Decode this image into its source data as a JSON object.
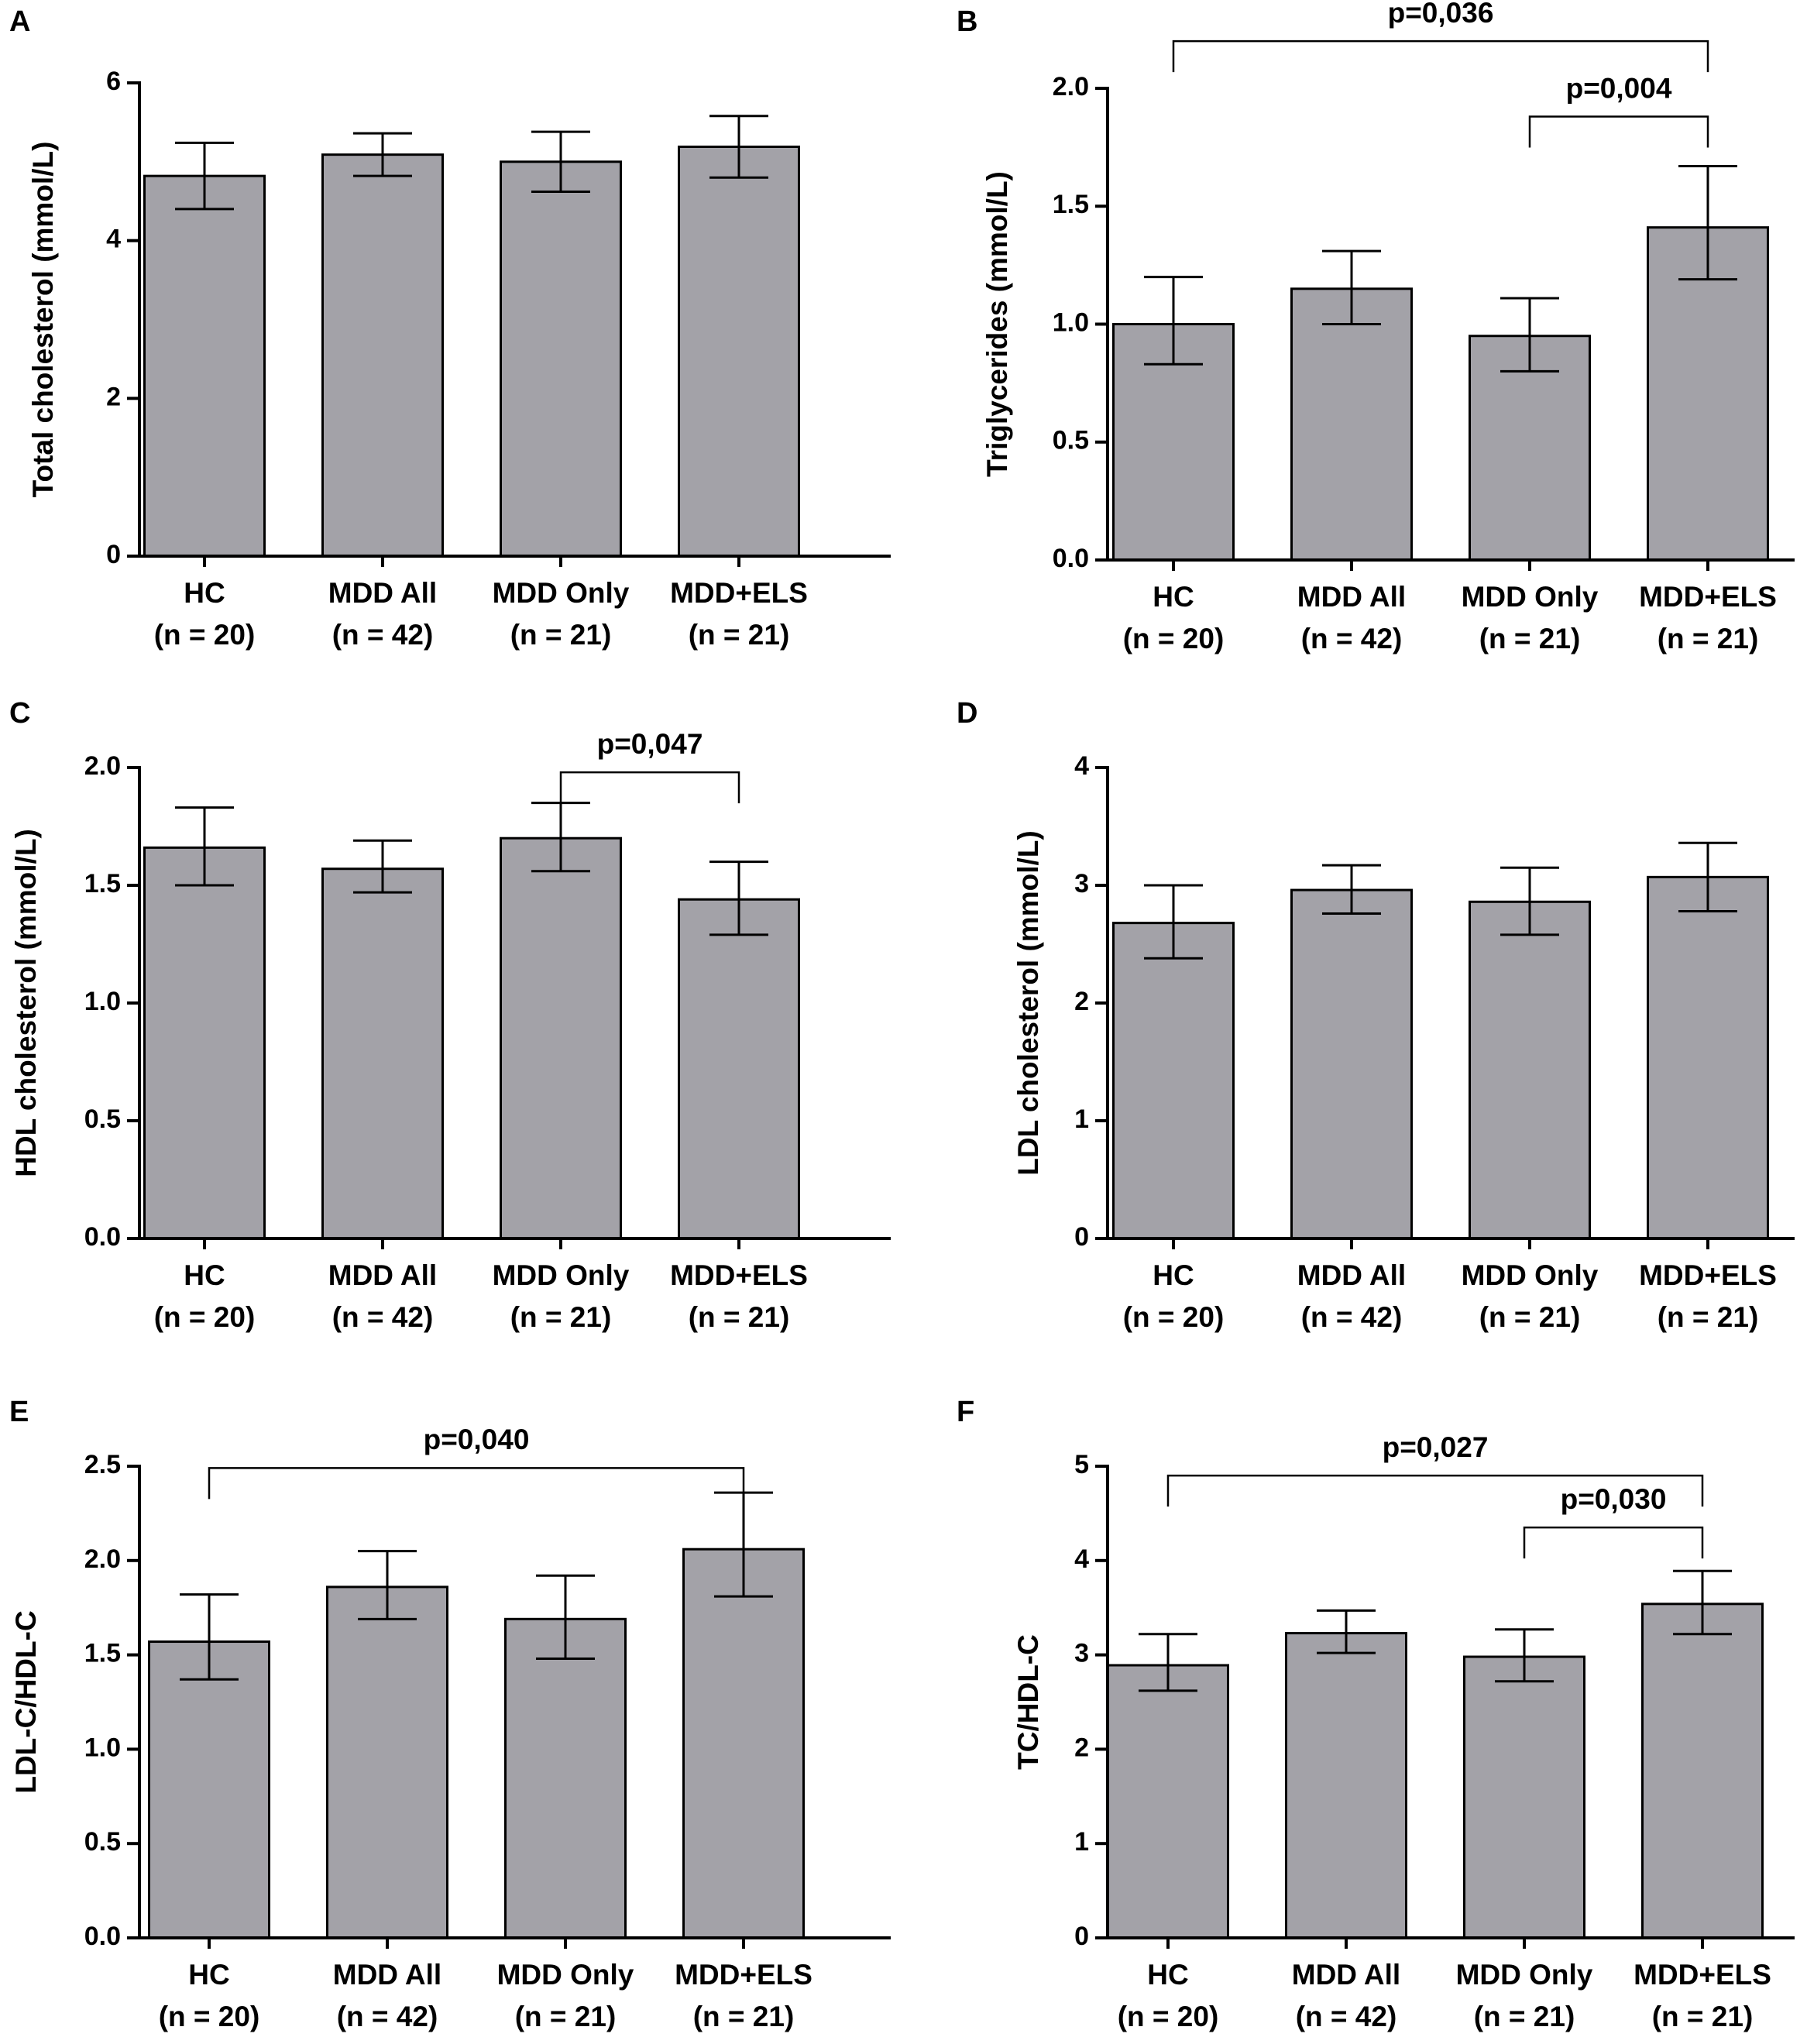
{
  "colors": {
    "bar": "#a3a2a8",
    "axis": "#000000",
    "background": "#ffffff"
  },
  "chart_data": [
    {
      "panel": "A",
      "type": "bar",
      "ylabel": "Total cholesterol (mmol/L)",
      "categories": [
        "HC",
        "MDD All",
        "MDD Only",
        "MDD+ELS"
      ],
      "n_labels": [
        "(n = 20)",
        "(n = 42)",
        "(n = 21)",
        "(n = 21)"
      ],
      "values": [
        4.82,
        5.09,
        5.0,
        5.19
      ],
      "err_low": [
        4.4,
        4.82,
        4.62,
        4.8
      ],
      "err_high": [
        5.24,
        5.36,
        5.38,
        5.58
      ],
      "ylim": [
        0,
        6
      ],
      "ticks": [
        0,
        2,
        4,
        6
      ],
      "tick_labels": [
        "0",
        "2",
        "4",
        "6"
      ],
      "brackets": []
    },
    {
      "panel": "B",
      "type": "bar",
      "ylabel": "Triglycerides (mmol/L)",
      "categories": [
        "HC",
        "MDD All",
        "MDD Only",
        "MDD+ELS"
      ],
      "n_labels": [
        "(n = 20)",
        "(n = 42)",
        "(n = 21)",
        "(n = 21)"
      ],
      "values": [
        1.0,
        1.15,
        0.95,
        1.41
      ],
      "err_low": [
        0.83,
        1.0,
        0.8,
        1.19
      ],
      "err_high": [
        1.2,
        1.31,
        1.11,
        1.67
      ],
      "ylim": [
        0,
        2.0
      ],
      "ticks": [
        0,
        0.5,
        1.0,
        1.5,
        2.0
      ],
      "tick_labels": [
        "0.0",
        "0.5",
        "1.0",
        "1.5",
        "2.0"
      ],
      "brackets": [
        {
          "from": 0,
          "to": 3,
          "y": 2.2,
          "label": "p=0,036"
        },
        {
          "from": 2,
          "to": 3,
          "y": 1.88,
          "label": "p=0,004"
        }
      ]
    },
    {
      "panel": "C",
      "type": "bar",
      "ylabel": "HDL cholesterol (mmol/L)",
      "categories": [
        "HC",
        "MDD All",
        "MDD Only",
        "MDD+ELS"
      ],
      "n_labels": [
        "(n = 20)",
        "(n = 42)",
        "(n = 21)",
        "(n = 21)"
      ],
      "values": [
        1.66,
        1.57,
        1.7,
        1.44
      ],
      "err_low": [
        1.5,
        1.47,
        1.56,
        1.29
      ],
      "err_high": [
        1.83,
        1.69,
        1.85,
        1.6
      ],
      "ylim": [
        0,
        2.0
      ],
      "ticks": [
        0,
        0.5,
        1.0,
        1.5,
        2.0
      ],
      "tick_labels": [
        "0.0",
        "0.5",
        "1.0",
        "1.5",
        "2.0"
      ],
      "brackets": [
        {
          "from": 2,
          "to": 3,
          "y": 1.98,
          "label": "p=0,047"
        }
      ]
    },
    {
      "panel": "D",
      "type": "bar",
      "ylabel": "LDL cholesterol (mmol/L)",
      "categories": [
        "HC",
        "MDD All",
        "MDD Only",
        "MDD+ELS"
      ],
      "n_labels": [
        "(n = 20)",
        "(n = 42)",
        "(n = 21)",
        "(n = 21)"
      ],
      "values": [
        2.68,
        2.96,
        2.86,
        3.07
      ],
      "err_low": [
        2.38,
        2.76,
        2.58,
        2.78
      ],
      "err_high": [
        3.0,
        3.17,
        3.15,
        3.36
      ],
      "ylim": [
        0,
        4
      ],
      "ticks": [
        0,
        1,
        2,
        3,
        4
      ],
      "tick_labels": [
        "0",
        "1",
        "2",
        "3",
        "4"
      ],
      "brackets": []
    },
    {
      "panel": "E",
      "type": "bar",
      "ylabel": "LDL-C/HDL-C",
      "categories": [
        "HC",
        "MDD All",
        "MDD Only",
        "MDD+ELS"
      ],
      "n_labels": [
        "(n = 20)",
        "(n = 42)",
        "(n = 21)",
        "(n = 21)"
      ],
      "values": [
        1.57,
        1.86,
        1.69,
        2.06
      ],
      "err_low": [
        1.37,
        1.69,
        1.48,
        1.81
      ],
      "err_high": [
        1.82,
        2.05,
        1.92,
        2.36
      ],
      "ylim": [
        0,
        2.5
      ],
      "ticks": [
        0,
        0.5,
        1.0,
        1.5,
        2.0,
        2.5
      ],
      "tick_labels": [
        "0.0",
        "0.5",
        "1.0",
        "1.5",
        "2.0",
        "2.5"
      ],
      "brackets": [
        {
          "from": 0,
          "to": 3,
          "y": 2.49,
          "label": "p=0,040"
        }
      ]
    },
    {
      "panel": "F",
      "type": "bar",
      "ylabel": "TC/HDL-C",
      "categories": [
        "HC",
        "MDD All",
        "MDD Only",
        "MDD+ELS"
      ],
      "n_labels": [
        "(n = 20)",
        "(n = 42)",
        "(n = 21)",
        "(n = 21)"
      ],
      "values": [
        2.89,
        3.23,
        2.98,
        3.54
      ],
      "err_low": [
        2.62,
        3.02,
        2.72,
        3.22
      ],
      "err_high": [
        3.22,
        3.47,
        3.27,
        3.89
      ],
      "ylim": [
        0,
        5
      ],
      "ticks": [
        0,
        1,
        2,
        3,
        4,
        5
      ],
      "tick_labels": [
        "0",
        "1",
        "2",
        "3",
        "4",
        "5"
      ],
      "brackets": [
        {
          "from": 0,
          "to": 3,
          "y": 4.9,
          "label": "p=0,027"
        },
        {
          "from": 2,
          "to": 3,
          "y": 4.35,
          "label": "p=0,030"
        }
      ]
    }
  ]
}
